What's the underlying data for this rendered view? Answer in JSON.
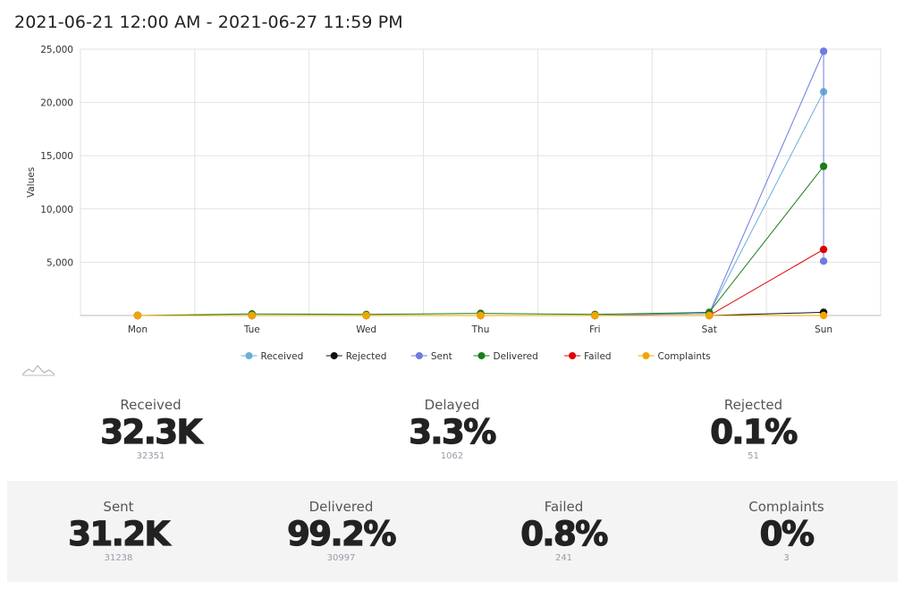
{
  "header": {
    "date_range": "2021-06-21 12:00 AM - 2021-06-27 11:59 PM"
  },
  "chart_data": {
    "type": "line",
    "title": "",
    "xlabel": "",
    "ylabel": "Values",
    "categories": [
      "Mon",
      "Tue",
      "Wed",
      "Thu",
      "Fri",
      "Sat",
      "Sun"
    ],
    "ylim": [
      0,
      25000
    ],
    "yticks": [
      5000,
      10000,
      15000,
      20000,
      25000
    ],
    "ytick_labels": [
      "5,000",
      "10,000",
      "15,000",
      "20,000",
      "25,000"
    ],
    "legend_position": "bottom",
    "series": [
      {
        "name": "Received",
        "color": "#6aaed6",
        "values": [
          0,
          0,
          0,
          0,
          0,
          200,
          21000
        ]
      },
      {
        "name": "Rejected",
        "color": "#111111",
        "values": [
          0,
          0,
          0,
          0,
          0,
          0,
          300
        ]
      },
      {
        "name": "Sent",
        "color": "#6e7be0",
        "values": [
          0,
          0,
          0,
          0,
          0,
          200,
          24800
        ],
        "extra_points": [
          {
            "x": "Sun",
            "y": 5100
          }
        ]
      },
      {
        "name": "Delivered",
        "color": "#1a7d1a",
        "values": [
          0,
          150,
          100,
          200,
          100,
          300,
          14000
        ]
      },
      {
        "name": "Failed",
        "color": "#e00000",
        "values": [
          0,
          0,
          0,
          0,
          0,
          0,
          6200
        ]
      },
      {
        "name": "Complaints",
        "color": "#f0a500",
        "values": [
          0,
          0,
          0,
          0,
          0,
          0,
          0
        ]
      }
    ]
  },
  "stats": {
    "received": {
      "label": "Received",
      "value": "32.3K",
      "sub": "32351"
    },
    "delayed": {
      "label": "Delayed",
      "value": "3.3%",
      "sub": "1062"
    },
    "rejected": {
      "label": "Rejected",
      "value": "0.1%",
      "sub": "51"
    },
    "sent": {
      "label": "Sent",
      "value": "31.2K",
      "sub": "31238"
    },
    "delivered": {
      "label": "Delivered",
      "value": "99.2%",
      "sub": "30997"
    },
    "failed": {
      "label": "Failed",
      "value": "0.8%",
      "sub": "241"
    },
    "complaints": {
      "label": "Complaints",
      "value": "0%",
      "sub": "3"
    }
  }
}
